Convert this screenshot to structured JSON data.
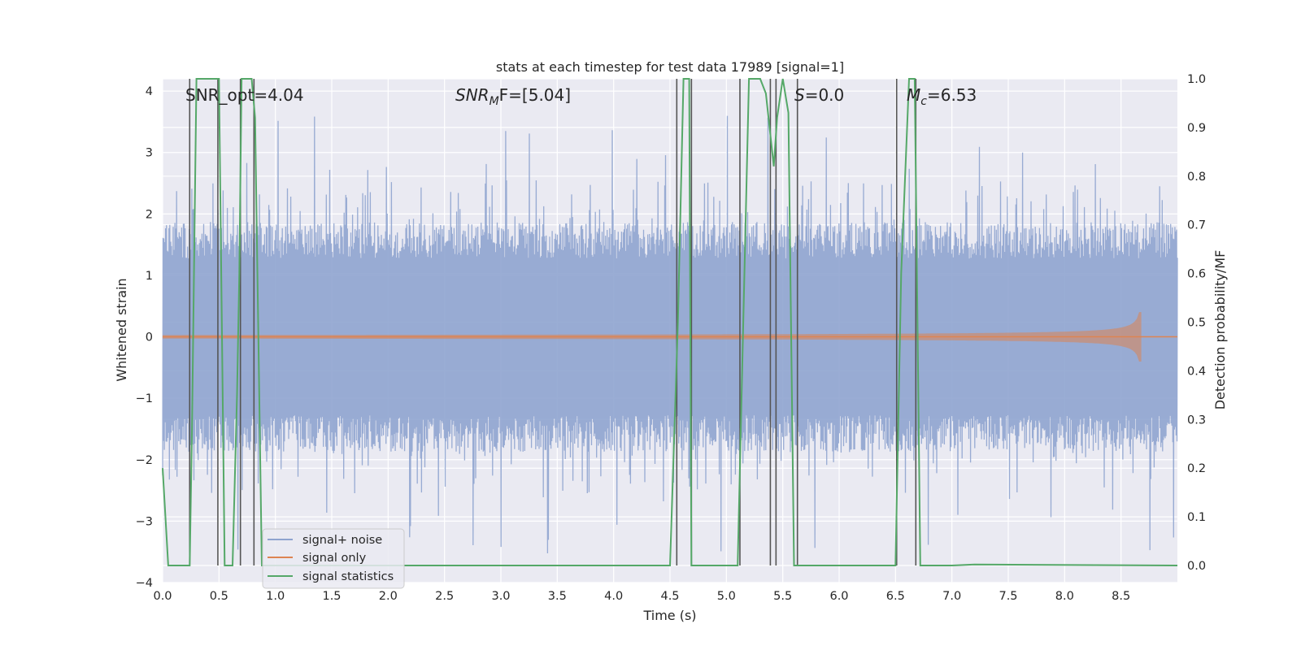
{
  "chart_data": {
    "type": "line",
    "title": "stats at each timestep for test data 17989 [signal=1]",
    "xlabel": "Time (s)",
    "ylabel_left": "Whitened strain",
    "ylabel_right": "Detection probability/MF",
    "xlim": [
      0.0,
      9.0
    ],
    "ylim_left": [
      -4.0,
      4.2
    ],
    "ylim_right": [
      -0.035,
      1.0
    ],
    "x_ticks": [
      "0.0",
      "0.5",
      "1.0",
      "1.5",
      "2.0",
      "2.5",
      "3.0",
      "3.5",
      "4.0",
      "4.5",
      "5.0",
      "5.5",
      "6.0",
      "6.5",
      "7.0",
      "7.5",
      "8.0",
      "8.5"
    ],
    "y_ticks_left": [
      "4",
      "3",
      "2",
      "1",
      "0",
      "−1",
      "−2",
      "−3",
      "−4"
    ],
    "y_ticks_right": [
      "1.0",
      "0.9",
      "0.8",
      "0.7",
      "0.6",
      "0.5",
      "0.4",
      "0.3",
      "0.2",
      "0.1",
      "0.0"
    ],
    "grid": true,
    "legend_position": "lower-left",
    "annotations": {
      "snr_opt": "SNR_opt=4.04",
      "snr_mf_main": "SNR",
      "snr_mf_sub": "M",
      "snr_mf_rest": "F=[5.04]",
      "s_label": "S",
      "s_value": "=0.0",
      "mc_main": "M",
      "mc_sub": "c",
      "mc_value": "=6.53"
    },
    "series": [
      {
        "name": "signal+ noise",
        "color": "#8fa4cf",
        "amplitude_typical": 1.7,
        "amplitude_peak": 3.6
      },
      {
        "name": "signal only",
        "color": "#dd8452",
        "chirp_end_time": 8.68,
        "chirp_peak_amplitude": 0.4
      },
      {
        "name": "signal statistics",
        "color": "#55a868",
        "x": [
          0.0,
          0.05,
          0.2,
          0.24,
          0.26,
          0.3,
          0.47,
          0.5,
          0.55,
          0.62,
          0.66,
          0.68,
          0.7,
          0.75,
          0.79,
          0.82,
          0.88,
          0.95,
          4.5,
          4.57,
          4.62,
          4.67,
          4.69,
          4.75,
          5.1,
          5.15,
          5.2,
          5.3,
          5.35,
          5.42,
          5.45,
          5.5,
          5.55,
          5.6,
          5.65,
          6.5,
          6.55,
          6.62,
          6.67,
          6.72,
          6.78,
          7.0,
          7.2,
          9.0
        ],
        "y": [
          0.2,
          0.0,
          0.0,
          0.0,
          0.28,
          1.0,
          1.0,
          1.0,
          0.0,
          0.0,
          0.35,
          0.6,
          1.0,
          1.0,
          1.0,
          0.92,
          0.0,
          0.0,
          0.0,
          0.5,
          1.0,
          1.0,
          0.0,
          0.0,
          0.0,
          0.5,
          1.0,
          1.0,
          0.97,
          0.82,
          0.92,
          1.0,
          0.93,
          0.0,
          0.0,
          0.0,
          0.6,
          1.0,
          1.0,
          0.0,
          0.0,
          0.0,
          0.002,
          0.0
        ]
      }
    ],
    "detection_markers_x": [
      0.24,
      0.49,
      0.69,
      0.81,
      4.56,
      4.69,
      5.12,
      5.39,
      5.44,
      5.63,
      6.51,
      6.68
    ]
  }
}
